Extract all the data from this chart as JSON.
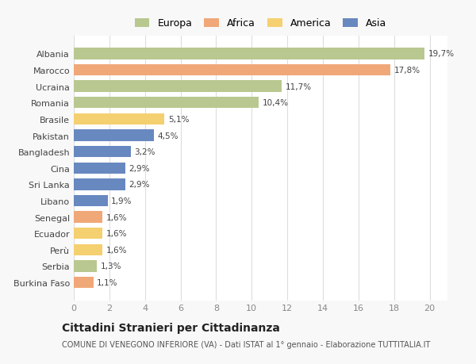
{
  "countries": [
    "Burkina Faso",
    "Serbia",
    "Perù",
    "Ecuador",
    "Senegal",
    "Libano",
    "Sri Lanka",
    "Cina",
    "Bangladesh",
    "Pakistan",
    "Brasile",
    "Romania",
    "Ucraina",
    "Marocco",
    "Albania"
  ],
  "values": [
    1.1,
    1.3,
    1.6,
    1.6,
    1.6,
    1.9,
    2.9,
    2.9,
    3.2,
    4.5,
    5.1,
    10.4,
    11.7,
    17.8,
    19.7
  ],
  "labels": [
    "1,1%",
    "1,3%",
    "1,6%",
    "1,6%",
    "1,6%",
    "1,9%",
    "2,9%",
    "2,9%",
    "3,2%",
    "4,5%",
    "5,1%",
    "10,4%",
    "11,7%",
    "17,8%",
    "19,7%"
  ],
  "colors": [
    "#f0a878",
    "#b8c890",
    "#f5d070",
    "#f5d070",
    "#f0a878",
    "#6888c0",
    "#6888c0",
    "#6888c0",
    "#6888c0",
    "#6888c0",
    "#f5d070",
    "#b8c890",
    "#b8c890",
    "#f0a878",
    "#b8c890"
  ],
  "legend_labels": [
    "Europa",
    "Africa",
    "America",
    "Asia"
  ],
  "legend_colors": [
    "#b8c890",
    "#f0a878",
    "#f5d070",
    "#6888c0"
  ],
  "title": "Cittadini Stranieri per Cittadinanza",
  "subtitle": "COMUNE DI VENEGONO INFERIORE (VA) - Dati ISTAT al 1° gennaio - Elaborazione TUTTITALIA.IT",
  "xlim": [
    0,
    21
  ],
  "xticks": [
    0,
    2,
    4,
    6,
    8,
    10,
    12,
    14,
    16,
    18,
    20
  ],
  "bg_color": "#f8f8f8",
  "plot_bg_color": "#ffffff"
}
